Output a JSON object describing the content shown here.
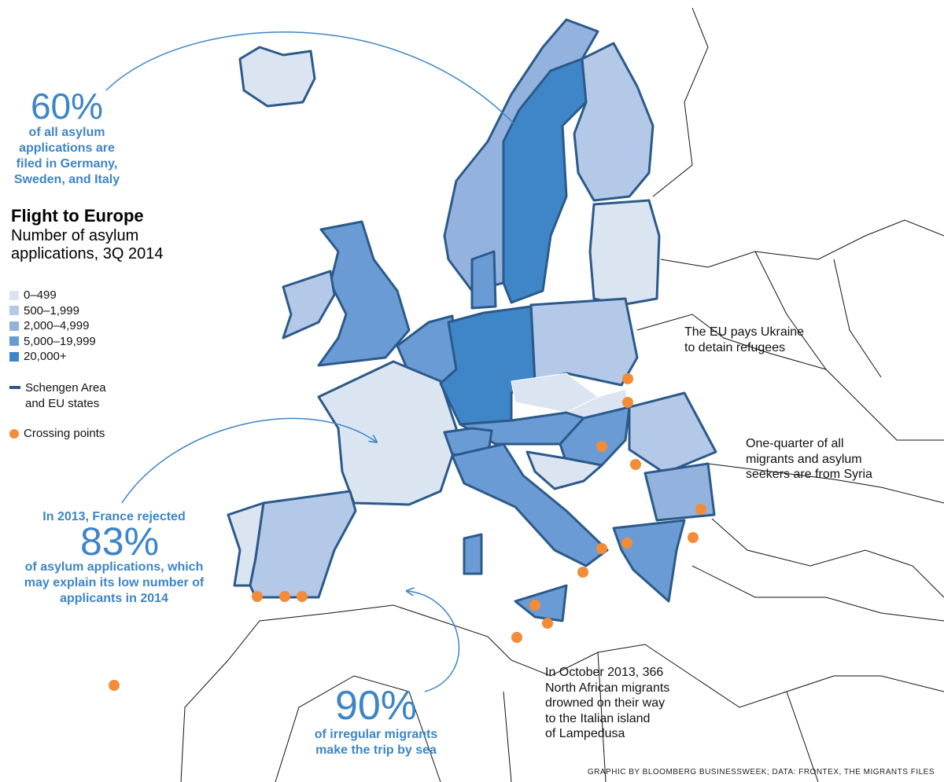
{
  "title": "Flight to Europe",
  "subtitle": [
    "Number of asylum",
    "applications, 3Q 2014"
  ],
  "legend": {
    "items": [
      {
        "label": "0–499",
        "color": "#dbe5f2"
      },
      {
        "label": "500–1,999",
        "color": "#b3c9e7"
      },
      {
        "label": "2,000–4,999",
        "color": "#93b3de"
      },
      {
        "label": "5,000–19,999",
        "color": "#6b9bd5"
      },
      {
        "label": "20,000+",
        "color": "#3e86c8"
      }
    ],
    "schengen": {
      "label": [
        "Schengen Area",
        "and EU states"
      ],
      "color": "#2b5a8a"
    },
    "crossing": {
      "label": "Crossing points",
      "color": "#f28c38"
    }
  },
  "annotations": {
    "share": {
      "figure": "60%",
      "lines": [
        "of all asylum",
        "applications are",
        "filed in Germany,",
        "Sweden, and Italy"
      ]
    },
    "france": {
      "intro": "In 2013, France rejected",
      "figure": "83%",
      "lines": [
        "of asylum applications, which",
        "may explain its low number of",
        "applicants in 2014"
      ]
    },
    "sea": {
      "figure": "90%",
      "lines": [
        "of irregular migrants",
        "make the trip by sea"
      ]
    },
    "ukraine": [
      "The EU pays Ukraine",
      "to detain refugees"
    ],
    "syria": [
      "One-quarter of all",
      "migrants and asylum",
      "seekers are from Syria"
    ],
    "lampedusa": [
      "In October 2013, 366",
      "North African migrants",
      "drowned on their way",
      "to the Italian island",
      "of Lampedusa"
    ]
  },
  "credit": "GRAPHIC BY BLOOMBERG BUSINESSWEEK; DATA: FRONTEX, THE MIGRANTS FILES"
}
